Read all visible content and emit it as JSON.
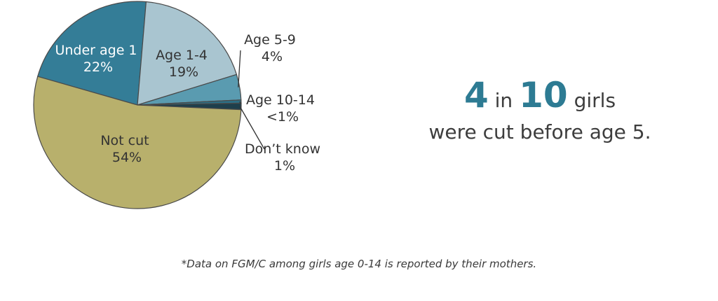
{
  "chart_data": {
    "type": "pie",
    "slices": [
      {
        "label": "Under age 1",
        "value": 22,
        "pct_label": "22%",
        "color": "#347d97"
      },
      {
        "label": "Age 1-4",
        "value": 19,
        "pct_label": "19%",
        "color": "#a9c5d0"
      },
      {
        "label": "Age 5-9",
        "value": 4,
        "pct_label": "4%",
        "color": "#5a9bb0"
      },
      {
        "label": "Age 10-14",
        "value": 0.5,
        "pct_label": "<1%",
        "color": "#2b6f86"
      },
      {
        "label": "Don’t know",
        "value": 1,
        "pct_label": "1%",
        "color": "#1e3f4c"
      },
      {
        "label": "Not cut",
        "value": 54,
        "pct_label": "54%",
        "color": "#b8b06c"
      }
    ]
  },
  "headline": {
    "num1": "4",
    "in": "in",
    "num2": "10",
    "girls": "girls",
    "line2": "were cut before age 5."
  },
  "footnote": "*Data on FGM/C among girls age 0-14 is reported by their mothers."
}
